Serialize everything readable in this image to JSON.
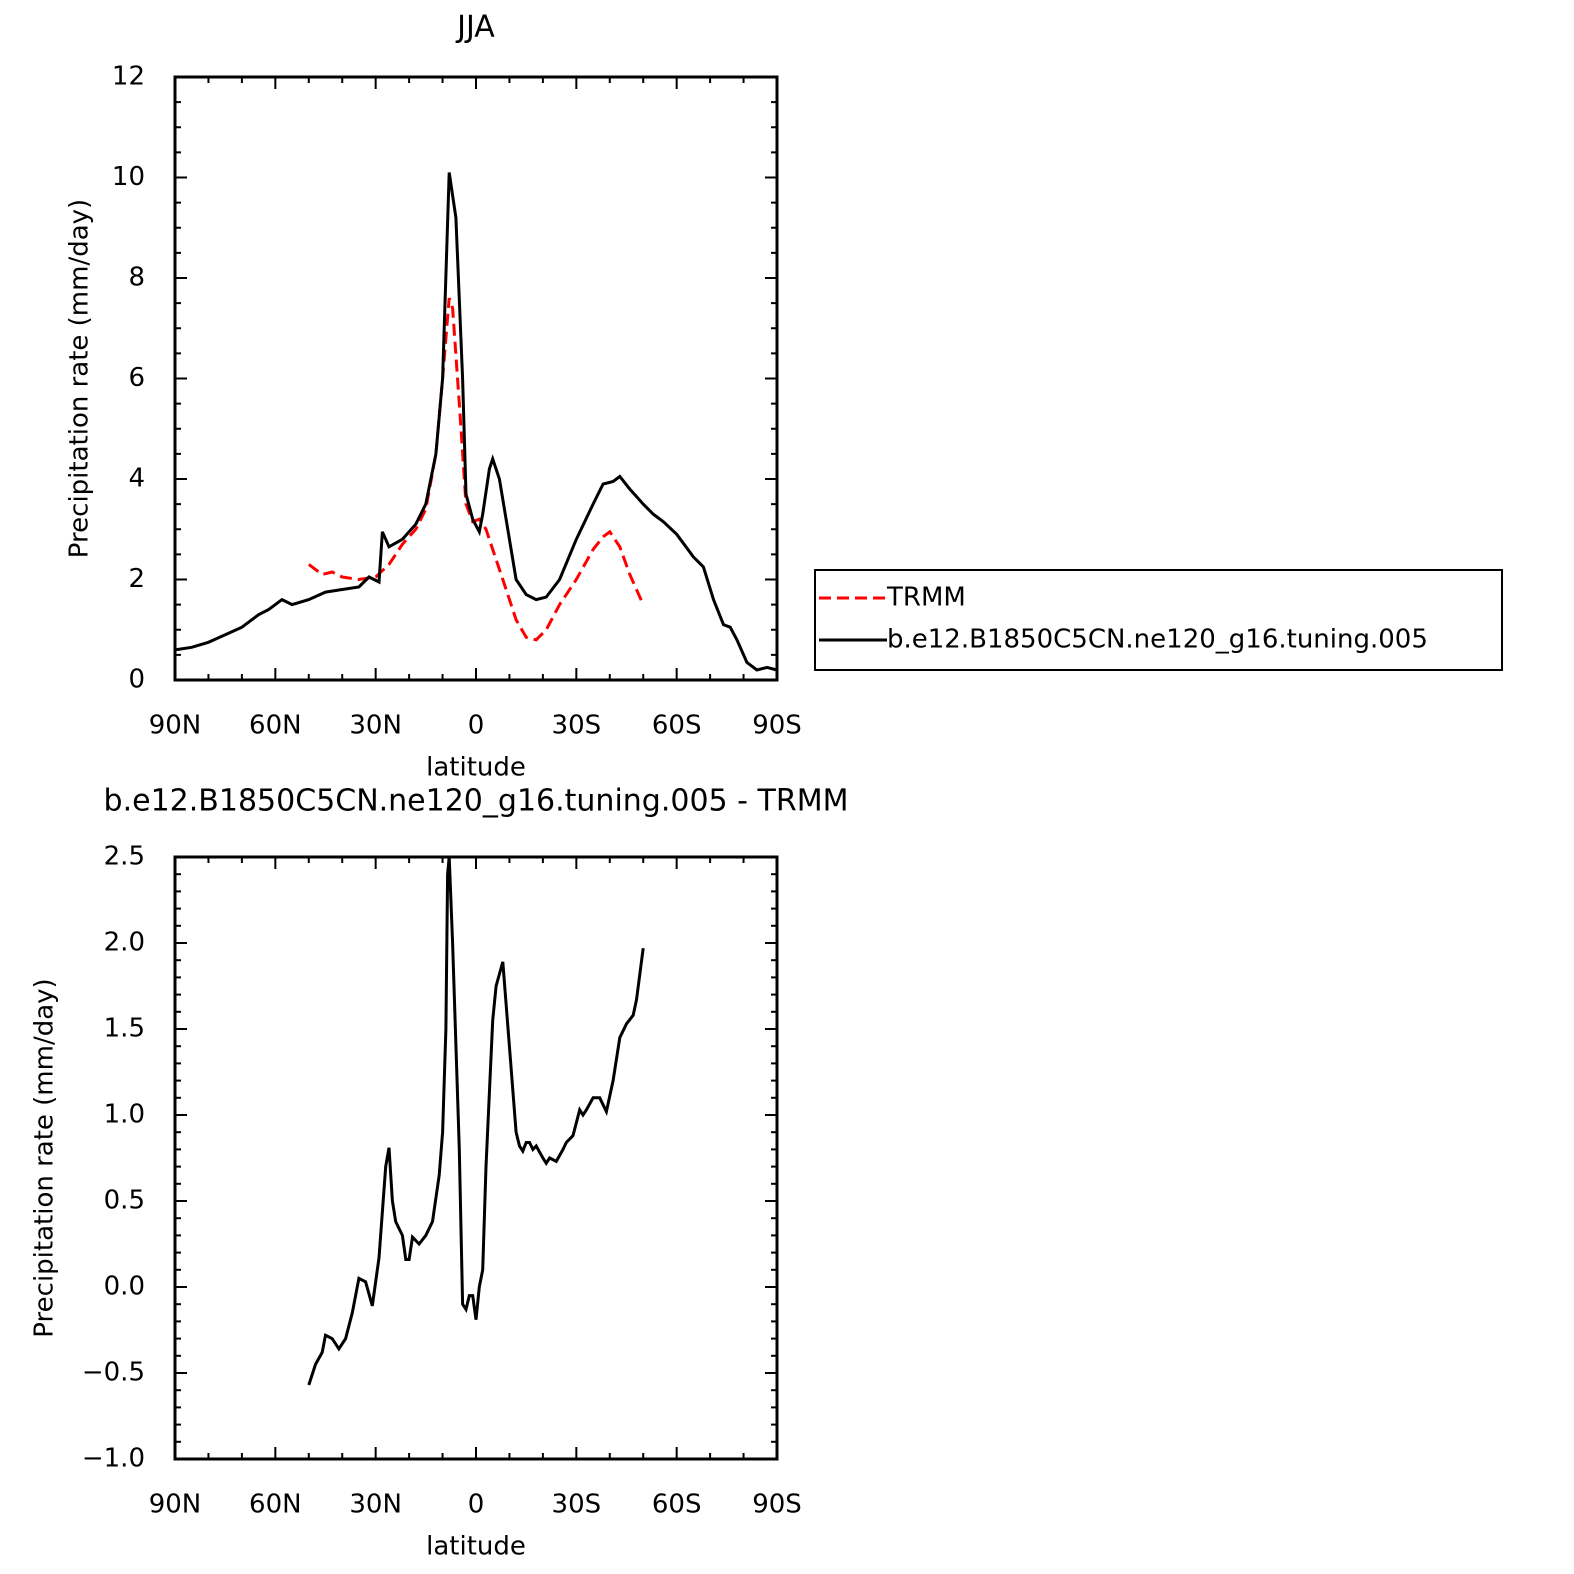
{
  "chart_data": [
    {
      "type": "line",
      "title": "JJA",
      "xlabel": "latitude",
      "ylabel": "Precipitation rate (mm/day)",
      "xlim": [
        90,
        -90
      ],
      "xticks": [
        {
          "value": 90,
          "label": "90N"
        },
        {
          "value": 60,
          "label": "60N"
        },
        {
          "value": 30,
          "label": "30N"
        },
        0,
        {
          "value": -30,
          "label": "30S"
        },
        {
          "value": -60,
          "label": "60S"
        },
        {
          "value": -90,
          "label": "90S"
        }
      ],
      "ylim": [
        0,
        12
      ],
      "yticks": [
        0,
        2,
        4,
        6,
        8,
        10,
        12
      ],
      "legend": "right",
      "series": [
        {
          "name": "TRMM",
          "color": "#ff0000",
          "line_style": "dashed",
          "x": [
            50,
            46,
            43,
            40,
            35,
            30,
            26,
            22,
            18,
            15,
            12,
            10,
            8,
            7,
            5,
            3,
            1,
            -1,
            -3,
            -5,
            -8,
            -12,
            -15,
            -18,
            -21,
            -25,
            -30,
            -35,
            -38,
            -40,
            -43,
            -46,
            -50
          ],
          "values": [
            2.3,
            2.1,
            2.15,
            2.05,
            2.0,
            2.05,
            2.3,
            2.7,
            3.0,
            3.4,
            4.5,
            6.0,
            7.6,
            7.4,
            5.5,
            3.5,
            3.15,
            3.2,
            3.0,
            2.6,
            2.0,
            1.2,
            0.85,
            0.8,
            1.0,
            1.5,
            2.0,
            2.6,
            2.85,
            2.95,
            2.65,
            2.1,
            1.5
          ]
        },
        {
          "name": "b.e12.B1850C5CN.ne120_g16.tuning.005",
          "color": "#000000",
          "line_style": "solid",
          "x": [
            90,
            85,
            80,
            75,
            70,
            65,
            62,
            58,
            55,
            50,
            45,
            40,
            35,
            32,
            29,
            28,
            26,
            22,
            18,
            15,
            12,
            10,
            8,
            6,
            4,
            3,
            1,
            -1,
            -2,
            -4,
            -5,
            -7,
            -9,
            -12,
            -15,
            -18,
            -21,
            -25,
            -30,
            -35,
            -38,
            -41,
            -43,
            -46,
            -50,
            -53,
            -56,
            -60,
            -65,
            -68,
            -71,
            -74,
            -76,
            -78,
            -81,
            -84,
            -87,
            -90
          ],
          "values": [
            0.6,
            0.65,
            0.75,
            0.9,
            1.05,
            1.3,
            1.4,
            1.6,
            1.5,
            1.6,
            1.75,
            1.8,
            1.85,
            2.05,
            1.95,
            2.95,
            2.65,
            2.8,
            3.1,
            3.5,
            4.5,
            6.0,
            10.1,
            9.2,
            6.0,
            3.7,
            3.2,
            2.95,
            3.3,
            4.2,
            4.4,
            4.0,
            3.2,
            2.0,
            1.7,
            1.6,
            1.65,
            2.0,
            2.8,
            3.5,
            3.9,
            3.95,
            4.05,
            3.8,
            3.5,
            3.3,
            3.15,
            2.9,
            2.45,
            2.25,
            1.6,
            1.1,
            1.05,
            0.8,
            0.35,
            0.2,
            0.25,
            0.2
          ]
        }
      ]
    },
    {
      "type": "line",
      "title": "b.e12.B1850C5CN.ne120_g16.tuning.005 - TRMM",
      "xlabel": "latitude",
      "ylabel": "Precipitation rate (mm/day)",
      "xlim": [
        90,
        -90
      ],
      "xticks": [
        {
          "value": 90,
          "label": "90N"
        },
        {
          "value": 60,
          "label": "60N"
        },
        {
          "value": 30,
          "label": "30N"
        },
        0,
        {
          "value": -30,
          "label": "30S"
        },
        {
          "value": -60,
          "label": "60S"
        },
        {
          "value": -90,
          "label": "90S"
        }
      ],
      "ylim": [
        -1,
        2.5
      ],
      "yticks": [
        {
          "value": -1,
          "label": "−1.0"
        },
        {
          "value": -0.5,
          "label": "−0.5"
        },
        {
          "value": 0,
          "label": "0.0"
        },
        0.5,
        {
          "value": 1,
          "label": "1.0"
        },
        1.5,
        {
          "value": 2,
          "label": "2.0"
        },
        2.5
      ],
      "series": [
        {
          "color": "#000000",
          "line_style": "solid",
          "x": [
            50,
            48,
            46,
            45,
            43,
            41,
            39,
            37,
            35,
            33,
            31,
            29,
            27,
            26,
            25,
            24,
            22,
            21,
            20,
            19,
            17,
            15,
            13,
            11,
            10,
            9,
            8.5,
            8,
            7,
            5,
            4,
            3,
            2,
            1,
            0,
            -1,
            -2,
            -3,
            -5,
            -6,
            -8,
            -10,
            -12,
            -13,
            -14,
            -15,
            -16,
            -17,
            -18,
            -20,
            -21,
            -22,
            -24,
            -26,
            -27,
            -29,
            -31,
            -32,
            -33,
            -35,
            -37,
            -39,
            -41,
            -43,
            -45,
            -47,
            -48,
            -50
          ],
          "values": [
            -0.57,
            -0.45,
            -0.38,
            -0.28,
            -0.3,
            -0.36,
            -0.3,
            -0.15,
            0.05,
            0.03,
            -0.11,
            0.17,
            0.7,
            0.81,
            0.5,
            0.38,
            0.3,
            0.16,
            0.16,
            0.29,
            0.25,
            0.3,
            0.38,
            0.65,
            0.9,
            1.5,
            2.4,
            2.5,
            2.0,
            0.8,
            -0.1,
            -0.13,
            -0.05,
            -0.05,
            -0.19,
            0.0,
            0.1,
            0.7,
            1.55,
            1.75,
            1.89,
            1.4,
            0.9,
            0.82,
            0.79,
            0.84,
            0.84,
            0.8,
            0.82,
            0.75,
            0.72,
            0.75,
            0.73,
            0.8,
            0.84,
            0.88,
            1.03,
            1.0,
            1.03,
            1.1,
            1.1,
            1.02,
            1.2,
            1.45,
            1.53,
            1.58,
            1.67,
            1.97
          ]
        }
      ]
    }
  ]
}
